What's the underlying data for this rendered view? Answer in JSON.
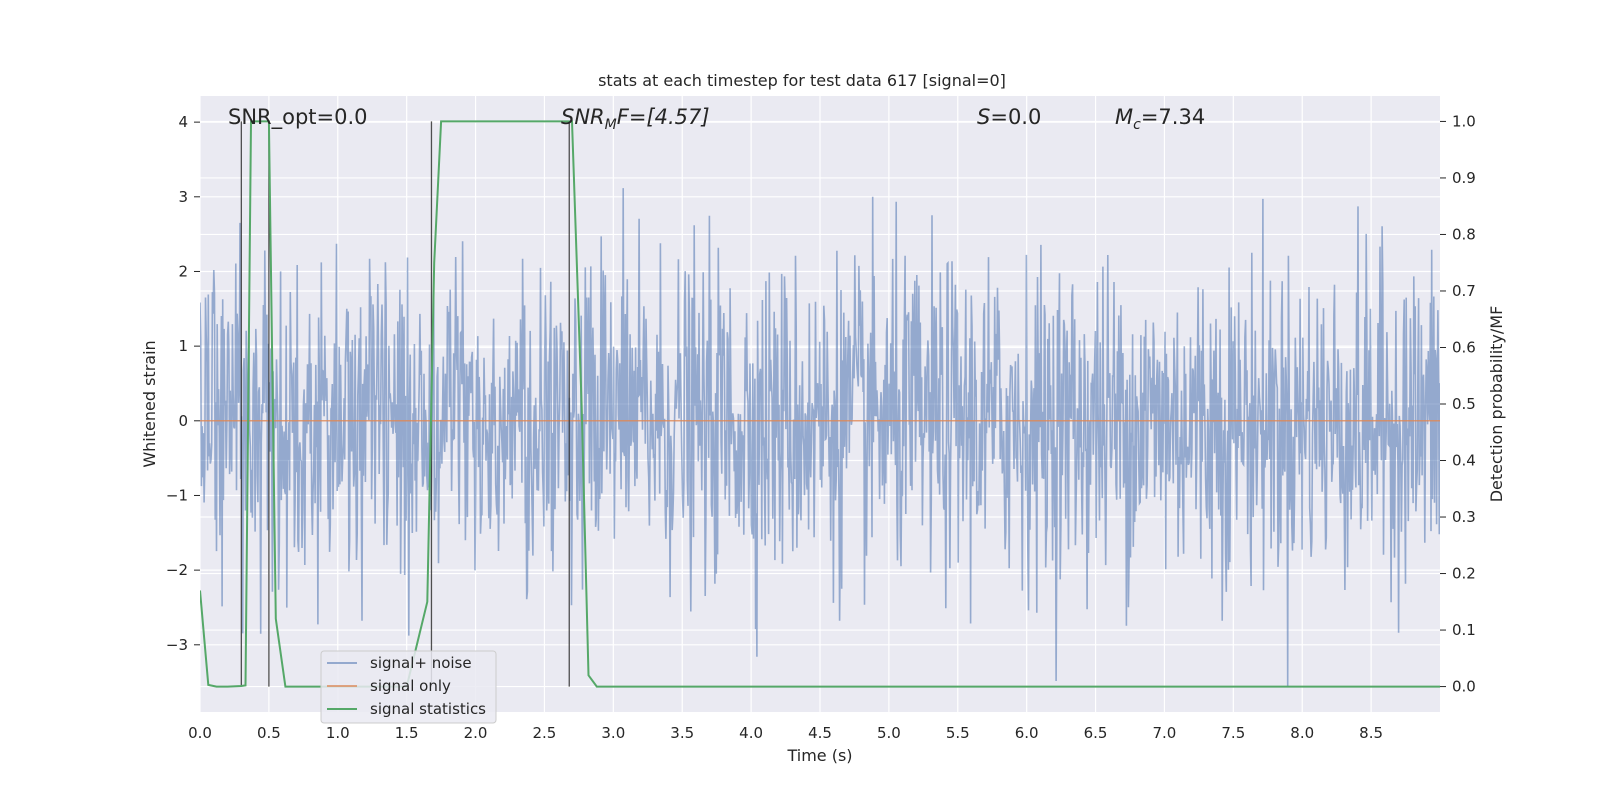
{
  "chart_data": {
    "type": "line",
    "title": "stats at each timestep for test data 617 [signal=0]",
    "xlabel": "Time (s)",
    "ylabel_left": "Whitened strain",
    "ylabel_right": "Detection probability/MF",
    "xlim": [
      0.0,
      9.0
    ],
    "ylim_left": [
      -3.9,
      4.35
    ],
    "ylim_right": [
      -0.045,
      1.045
    ],
    "grid": true,
    "background": "#eaeaf2",
    "x_ticks": [
      "0.0",
      "0.5",
      "1.0",
      "1.5",
      "2.0",
      "2.5",
      "3.0",
      "3.5",
      "4.0",
      "4.5",
      "5.0",
      "5.5",
      "6.0",
      "6.5",
      "7.0",
      "7.5",
      "8.0",
      "8.5"
    ],
    "y_ticks_left": [
      "4",
      "3",
      "2",
      "1",
      "0",
      "−1",
      "−2",
      "−3"
    ],
    "y_ticks_right": [
      "1.0",
      "0.9",
      "0.8",
      "0.7",
      "0.6",
      "0.5",
      "0.4",
      "0.3",
      "0.2",
      "0.1",
      "0.0"
    ],
    "annotations": [
      {
        "text": "SNR_opt=0.0"
      },
      {
        "prefix": "SNR",
        "sub": "M",
        "suffix": "F=[4.57]"
      },
      {
        "prefix": "S",
        "sub": "",
        "suffix": "=0.0"
      },
      {
        "prefix": "M",
        "sub": "c",
        "suffix": "=7.34"
      }
    ],
    "legend": {
      "position": "lower-left",
      "entries": [
        "signal+ noise",
        "signal only",
        "signal statistics"
      ]
    },
    "series": [
      {
        "name": "signal+ noise",
        "axis": "left",
        "color": "#4c72b0",
        "description_values": {
          "mean": 0.0,
          "std": 1.0,
          "samples_approx": 1800,
          "t_start": 0.0,
          "t_end": 9.0
        }
      },
      {
        "name": "signal only",
        "axis": "left",
        "color": "#dd8452",
        "x": [
          0.0,
          9.0
        ],
        "y": [
          0.0,
          0.0
        ]
      },
      {
        "name": "signal statistics",
        "axis": "right",
        "color": "#55a868",
        "x": [
          0.0,
          0.06,
          0.12,
          0.2,
          0.3,
          0.33,
          0.37,
          0.5,
          0.55,
          0.62,
          1.0,
          1.5,
          1.65,
          1.7,
          1.75,
          2.0,
          2.5,
          2.7,
          2.77,
          2.82,
          2.88,
          3.5,
          5.0,
          7.0,
          9.0
        ],
        "y": [
          0.17,
          0.003,
          0.0,
          0.0,
          0.001,
          0.002,
          1.0,
          1.0,
          0.12,
          0.0,
          0.0,
          0.0,
          0.15,
          0.75,
          1.0,
          1.0,
          1.0,
          1.0,
          0.5,
          0.02,
          0.0,
          0.0,
          0.0,
          0.0,
          0.0
        ]
      }
    ],
    "vertical_lines": [
      0.3,
      0.5,
      1.68,
      2.68
    ]
  }
}
